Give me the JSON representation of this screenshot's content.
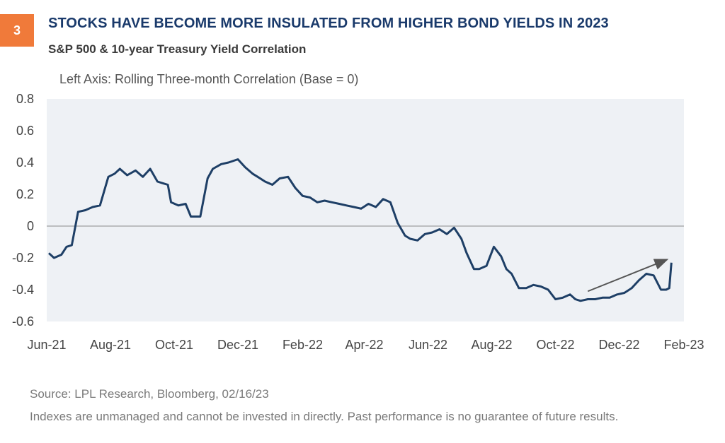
{
  "badge": "3",
  "title": "STOCKS HAVE BECOME MORE INSULATED FROM HIGHER BOND YIELDS IN 2023",
  "subtitle": "S&P 500 & 10-year Treasury Yield Correlation",
  "colors": {
    "line": "#1e3f66",
    "plot_bg": "#eef1f5",
    "badge": "#f07a3a",
    "arrow": "#555555",
    "title": "#1a3a6b"
  },
  "chart_data": {
    "type": "line",
    "ylabel": "Left Axis: Rolling Three-month Correlation (Base = 0)",
    "ylim": [
      -0.6,
      0.8
    ],
    "yticks": [
      0.8,
      0.6,
      0.4,
      0.2,
      0,
      -0.2,
      -0.4,
      -0.6
    ],
    "ytick_labels": [
      "0.8",
      "0.6",
      "0.4",
      "0.2",
      "0",
      "-0.2",
      "-0.4",
      "-0.6"
    ],
    "xlim": [
      "2021-06-01",
      "2023-02-01"
    ],
    "xtick_labels": [
      "Jun-21",
      "Aug-21",
      "Oct-21",
      "Dec-21",
      "Feb-22",
      "Apr-22",
      "Jun-22",
      "Aug-22",
      "Oct-22",
      "Dec-22",
      "Feb-23"
    ],
    "xtick_dates": [
      "2021-06-01",
      "2021-08-01",
      "2021-10-01",
      "2021-12-01",
      "2022-02-01",
      "2022-04-01",
      "2022-06-01",
      "2022-08-01",
      "2022-10-01",
      "2022-12-01",
      "2023-02-01"
    ],
    "reference_line": 0,
    "grid": false,
    "series": [
      {
        "x": [
          "2021-06-03",
          "2021-06-08",
          "2021-06-15",
          "2021-06-20",
          "2021-06-25",
          "2021-07-01",
          "2021-07-08",
          "2021-07-15",
          "2021-07-22",
          "2021-07-30",
          "2021-08-05",
          "2021-08-10",
          "2021-08-17",
          "2021-08-25",
          "2021-09-01",
          "2021-09-08",
          "2021-09-15",
          "2021-09-20",
          "2021-09-25",
          "2021-09-28",
          "2021-10-05",
          "2021-10-12",
          "2021-10-17",
          "2021-10-20",
          "2021-10-26",
          "2021-11-02",
          "2021-11-07",
          "2021-11-15",
          "2021-11-22",
          "2021-12-01",
          "2021-12-08",
          "2021-12-15",
          "2021-12-20",
          "2021-12-27",
          "2022-01-03",
          "2022-01-10",
          "2022-01-18",
          "2022-01-25",
          "2022-02-01",
          "2022-02-08",
          "2022-02-15",
          "2022-02-22",
          "2022-03-01",
          "2022-03-08",
          "2022-03-15",
          "2022-03-22",
          "2022-03-29",
          "2022-04-05",
          "2022-04-12",
          "2022-04-19",
          "2022-04-26",
          "2022-05-03",
          "2022-05-10",
          "2022-05-15",
          "2022-05-22",
          "2022-05-29",
          "2022-06-05",
          "2022-06-12",
          "2022-06-19",
          "2022-06-26",
          "2022-07-03",
          "2022-07-08",
          "2022-07-15",
          "2022-07-20",
          "2022-07-27",
          "2022-08-03",
          "2022-08-10",
          "2022-08-15",
          "2022-08-20",
          "2022-08-27",
          "2022-09-03",
          "2022-09-10",
          "2022-09-17",
          "2022-09-24",
          "2022-10-01",
          "2022-10-08",
          "2022-10-15",
          "2022-10-20",
          "2022-10-25",
          "2022-11-01",
          "2022-11-08",
          "2022-11-15",
          "2022-11-22",
          "2022-11-29",
          "2022-12-06",
          "2022-12-13",
          "2022-12-20",
          "2022-12-27",
          "2023-01-03",
          "2023-01-10",
          "2023-01-15",
          "2023-01-18",
          "2023-01-20"
        ],
        "values": [
          -0.17,
          -0.2,
          -0.18,
          -0.13,
          -0.12,
          0.09,
          0.1,
          0.12,
          0.13,
          0.31,
          0.33,
          0.36,
          0.32,
          0.35,
          0.31,
          0.36,
          0.28,
          0.27,
          0.26,
          0.15,
          0.13,
          0.14,
          0.06,
          0.06,
          0.06,
          0.3,
          0.36,
          0.39,
          0.4,
          0.42,
          0.37,
          0.33,
          0.31,
          0.28,
          0.26,
          0.3,
          0.31,
          0.24,
          0.19,
          0.18,
          0.15,
          0.16,
          0.15,
          0.14,
          0.13,
          0.12,
          0.11,
          0.14,
          0.12,
          0.17,
          0.15,
          0.02,
          -0.06,
          -0.08,
          -0.09,
          -0.05,
          -0.04,
          -0.02,
          -0.05,
          -0.01,
          -0.08,
          -0.17,
          -0.27,
          -0.27,
          -0.25,
          -0.13,
          -0.19,
          -0.27,
          -0.3,
          -0.39,
          -0.39,
          -0.37,
          -0.38,
          -0.4,
          -0.46,
          -0.45,
          -0.43,
          -0.46,
          -0.47,
          -0.46,
          -0.46,
          -0.45,
          -0.45,
          -0.43,
          -0.42,
          -0.39,
          -0.34,
          -0.3,
          -0.31,
          -0.4,
          -0.4,
          -0.39,
          -0.23
        ]
      }
    ],
    "annotations": [
      {
        "type": "arrow",
        "from": [
          "2022-11-01",
          -0.41
        ],
        "to": [
          "2023-01-16",
          -0.21
        ]
      }
    ]
  },
  "source": "Source: LPL Research, Bloomberg, 02/16/23",
  "disclaimer": "Indexes are unmanaged and cannot be invested in directly. Past performance is no guarantee of future results."
}
